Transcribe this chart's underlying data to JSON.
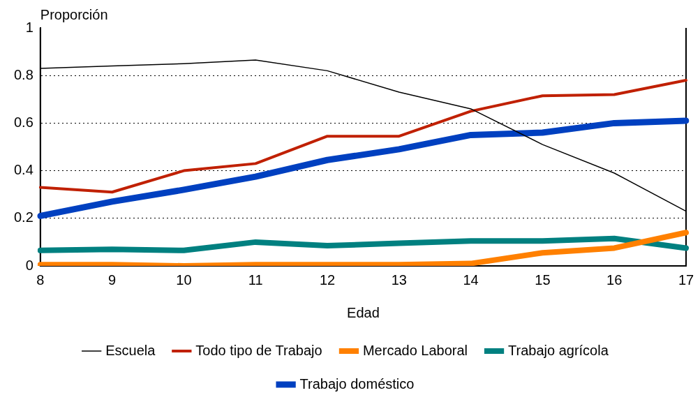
{
  "chart_data": {
    "type": "line",
    "xlabel": "Edad",
    "ylabel": "Proporción",
    "categories": [
      "8",
      "9",
      "10",
      "11",
      "12",
      "13",
      "14",
      "15",
      "16",
      "17"
    ],
    "ylim": [
      0,
      1
    ],
    "yticks": [
      0,
      0.2,
      0.4,
      0.6,
      0.8,
      1
    ],
    "grid": "y",
    "legend": "bottom",
    "marker": "none",
    "series": [
      {
        "name": "Escuela",
        "color": "#000000",
        "values": [
          0.83,
          0.84,
          0.85,
          0.865,
          0.82,
          0.73,
          0.66,
          0.51,
          0.39,
          0.23
        ]
      },
      {
        "name": "Todo tipo de Trabajo",
        "color": "#c02000",
        "values": [
          0.33,
          0.31,
          0.4,
          0.43,
          0.545,
          0.545,
          0.65,
          0.715,
          0.72,
          0.78
        ]
      },
      {
        "name": "Mercado Laboral",
        "color": "#ff8000",
        "values": [
          0.005,
          0.005,
          0,
          0.005,
          0.005,
          0.005,
          0.01,
          0.055,
          0.075,
          0.14
        ]
      },
      {
        "name": "Trabajo agrícola",
        "color": "#008080",
        "values": [
          0.065,
          0.07,
          0.065,
          0.1,
          0.085,
          0.095,
          0.105,
          0.105,
          0.115,
          0.075
        ]
      },
      {
        "name": "Trabajo doméstico",
        "color": "#0040c0",
        "values": [
          0.21,
          0.27,
          0.32,
          0.375,
          0.445,
          0.49,
          0.55,
          0.56,
          0.6,
          0.61
        ]
      }
    ]
  }
}
